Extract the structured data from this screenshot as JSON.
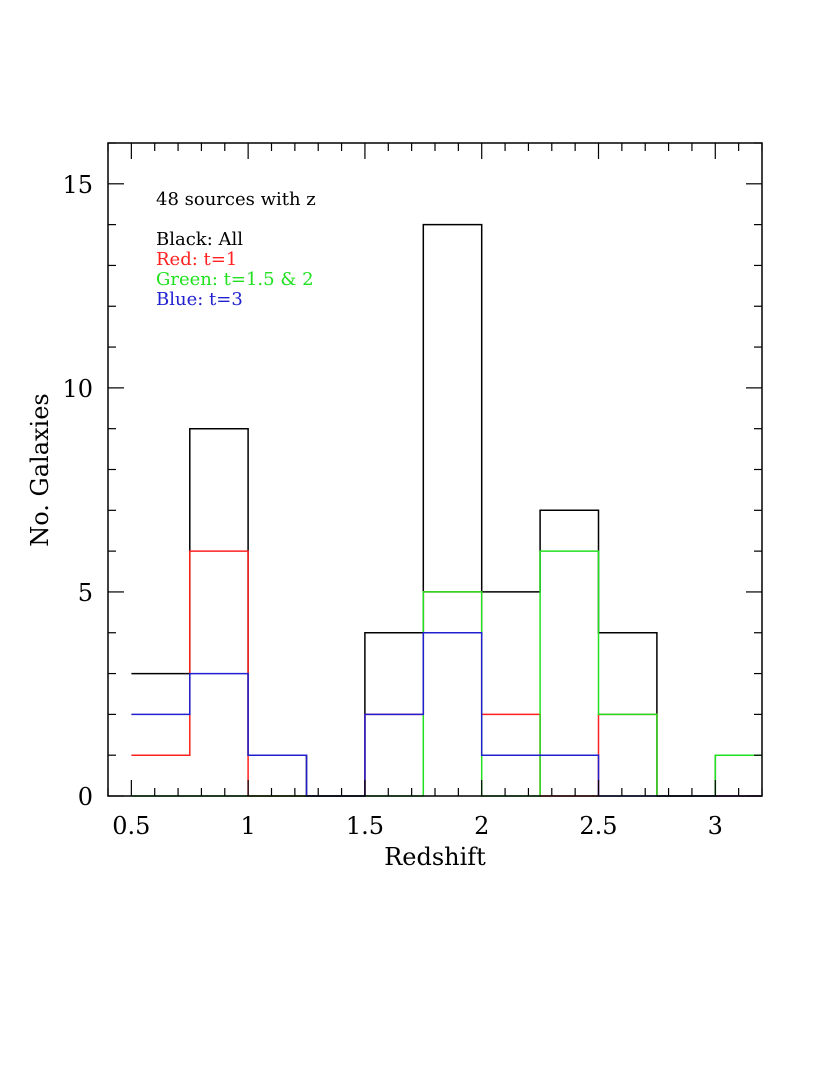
{
  "chart_data": {
    "type": "bar",
    "histtype": "step",
    "title": "",
    "xlabel": "Redshift",
    "ylabel": "No. Galaxies",
    "xlim": [
      0.4,
      3.2
    ],
    "ylim": [
      0,
      16
    ],
    "grid": false,
    "x_major_ticks": [
      0.5,
      1,
      1.5,
      2,
      2.5,
      3
    ],
    "x_tick_labels": [
      "0.5",
      "1",
      "1.5",
      "2",
      "2.5",
      "3"
    ],
    "x_minor_step": 0.1,
    "y_major_ticks": [
      0,
      5,
      10,
      15
    ],
    "y_tick_labels": [
      "0",
      "5",
      "10",
      "15"
    ],
    "y_minor_step": 1,
    "bin_edges": [
      0.5,
      0.75,
      1.0,
      1.25,
      1.5,
      1.75,
      2.0,
      2.25,
      2.5,
      2.75,
      3.0,
      3.2
    ],
    "series": [
      {
        "name": "All",
        "color": "#000000",
        "values": [
          3,
          9,
          1,
          0,
          4,
          14,
          5,
          7,
          4,
          0,
          1
        ]
      },
      {
        "name": "t=1",
        "color": "#ff2020",
        "values": [
          1,
          6,
          0,
          0,
          2,
          5,
          2,
          0,
          2,
          0,
          0
        ]
      },
      {
        "name": "t=1.5 & 2",
        "color": "#20e020",
        "values": [
          0,
          0,
          0,
          0,
          0,
          5,
          0,
          6,
          2,
          0,
          1
        ]
      },
      {
        "name": "t=3",
        "color": "#2020d0",
        "values": [
          2,
          3,
          1,
          0,
          2,
          4,
          1,
          1,
          0,
          0,
          0
        ]
      }
    ],
    "annotation": "48 sources with z",
    "legend": [
      {
        "text": "Black: All",
        "color": "#000000"
      },
      {
        "text": "Red: t=1",
        "color": "#ff2020"
      },
      {
        "text": "Green: t=1.5 & 2",
        "color": "#20e020"
      },
      {
        "text": "Blue: t=3",
        "color": "#2020d0"
      }
    ],
    "legend_position": "top-left"
  }
}
